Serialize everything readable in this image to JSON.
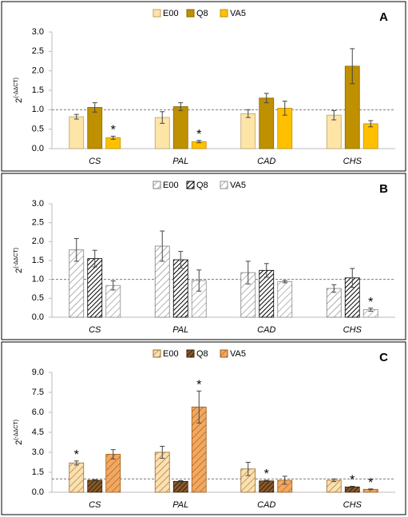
{
  "chart_data": [
    {
      "type": "bar",
      "panel": "A",
      "y_label": {
        "base": "2",
        "exponent": "(-ΔΔCT)"
      },
      "categories": [
        "CS",
        "PAL",
        "CAD",
        "CHS"
      ],
      "series": [
        {
          "name": "E00",
          "color": "#fde5a8",
          "edge": "#bfa060",
          "hatch": "none",
          "values": [
            0.82,
            0.8,
            0.9,
            0.86
          ],
          "errors": [
            0.06,
            0.15,
            0.1,
            0.12
          ]
        },
        {
          "name": "Q8",
          "color": "#bf9000",
          "edge": "#8a6800",
          "hatch": "none",
          "values": [
            1.06,
            1.08,
            1.3,
            2.12
          ],
          "errors": [
            0.12,
            0.1,
            0.12,
            0.45
          ]
        },
        {
          "name": "VA5",
          "color": "#ffc000",
          "edge": "#c09000",
          "hatch": "none",
          "values": [
            0.28,
            0.18,
            1.04,
            0.64
          ],
          "errors": [
            0.04,
            0.03,
            0.18,
            0.08
          ]
        }
      ],
      "annotations": [
        {
          "text": "*",
          "series": "VA5",
          "category": "CS"
        },
        {
          "text": "*",
          "series": "VA5",
          "category": "PAL"
        }
      ],
      "reference_line": 1,
      "ylim": [
        0,
        3
      ],
      "yticks": [
        {
          "value": 0,
          "label": "0.0"
        },
        {
          "value": 0.5,
          "label": "0.5"
        },
        {
          "value": 1,
          "label": "1.0"
        },
        {
          "value": 1.5,
          "label": "1.5"
        },
        {
          "value": 2,
          "label": "2.0"
        },
        {
          "value": 2.5,
          "label": "2.5"
        },
        {
          "value": 3,
          "label": "3.0"
        }
      ]
    },
    {
      "type": "bar",
      "panel": "B",
      "y_label": {
        "base": "2",
        "exponent": "(-ΔΔCT)"
      },
      "categories": [
        "CS",
        "PAL",
        "CAD",
        "CHS"
      ],
      "series": [
        {
          "name": "E00",
          "color": "#ffffff",
          "edge": "#7f7f7f",
          "hatch": "wide",
          "values": [
            1.78,
            1.88,
            1.18,
            0.76
          ],
          "errors": [
            0.3,
            0.4,
            0.3,
            0.1
          ]
        },
        {
          "name": "Q8",
          "color": "#ffffff",
          "edge": "#000000",
          "hatch": "dense",
          "values": [
            1.55,
            1.52,
            1.24,
            1.04
          ],
          "errors": [
            0.22,
            0.22,
            0.18,
            0.25
          ]
        },
        {
          "name": "VA5",
          "color": "#ffffff",
          "edge": "#8c8c8c",
          "hatch": "wide",
          "values": [
            0.84,
            0.97,
            0.94,
            0.2
          ],
          "errors": [
            0.12,
            0.28,
            0.03,
            0.04
          ]
        }
      ],
      "annotations": [
        {
          "text": "*",
          "series": "VA5",
          "category": "CHS"
        }
      ],
      "reference_line": 1,
      "ylim": [
        0,
        3
      ],
      "yticks": [
        {
          "value": 0,
          "label": "0.0"
        },
        {
          "value": 0.5,
          "label": "0.5"
        },
        {
          "value": 1,
          "label": "1.0"
        },
        {
          "value": 1.5,
          "label": "1.5"
        },
        {
          "value": 2,
          "label": "2.0"
        },
        {
          "value": 2.5,
          "label": "2.5"
        },
        {
          "value": 3,
          "label": "3.0"
        }
      ]
    },
    {
      "type": "bar",
      "panel": "C",
      "y_label": {
        "base": "2",
        "exponent": "(-ΔΔCT)"
      },
      "categories": [
        "CS",
        "PAL",
        "CAD",
        "CHS"
      ],
      "series": [
        {
          "name": "E00",
          "color": "#fbe0b0",
          "edge": "#9c6a2a",
          "hatch": "wide",
          "values": [
            2.2,
            3.0,
            1.75,
            0.9
          ],
          "errors": [
            0.15,
            0.45,
            0.5,
            0.1
          ]
        },
        {
          "name": "Q8",
          "color": "#8a5a2a",
          "edge": "#3a2008",
          "hatch": "dense",
          "values": [
            0.9,
            0.82,
            0.85,
            0.4
          ],
          "errors": [
            0.05,
            0.05,
            0.05,
            0.05
          ]
        },
        {
          "name": "VA5",
          "color": "#f2a860",
          "edge": "#9c5a1a",
          "hatch": "wide",
          "values": [
            2.85,
            6.4,
            0.9,
            0.22
          ],
          "errors": [
            0.35,
            1.2,
            0.3,
            0.03
          ]
        }
      ],
      "annotations": [
        {
          "text": "*",
          "series": "E00",
          "category": "CS"
        },
        {
          "text": "*",
          "series": "VA5",
          "category": "PAL"
        },
        {
          "text": "*",
          "series": "Q8",
          "category": "CAD"
        },
        {
          "text": "*",
          "series": "Q8",
          "category": "CHS"
        },
        {
          "text": "*",
          "series": "VA5",
          "category": "CHS"
        }
      ],
      "reference_line": 1,
      "ylim": [
        0,
        9
      ],
      "yticks": [
        {
          "value": 0,
          "label": "0.0"
        },
        {
          "value": 1.5,
          "label": "1.5"
        },
        {
          "value": 3,
          "label": "3.0"
        },
        {
          "value": 4.5,
          "label": "4.5"
        },
        {
          "value": 6,
          "label": "6.0"
        },
        {
          "value": 7.5,
          "label": "7.5"
        },
        {
          "value": 9,
          "label": "9.0"
        }
      ]
    }
  ]
}
